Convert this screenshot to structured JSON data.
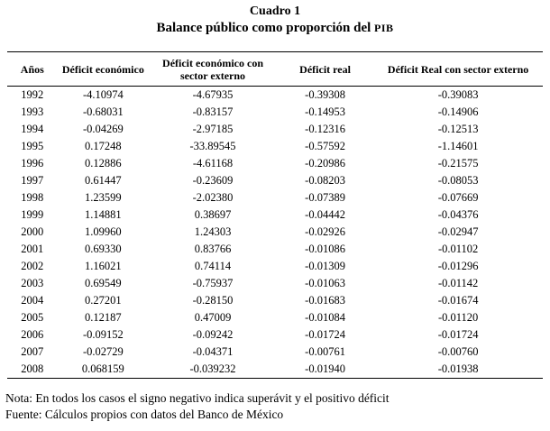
{
  "title": "Cuadro 1",
  "subtitle_prefix": "Balance público como proporción del ",
  "subtitle_acronym": "PIB",
  "table": {
    "headers": [
      "Años",
      "Déficit económico",
      "Déficit económico con sector externo",
      "Déficit real",
      "Déficit Real con sector externo"
    ],
    "rows": [
      [
        "1992",
        "-4.10974",
        "-4.67935",
        "-0.39308",
        "-0.39083"
      ],
      [
        "1993",
        "-0.68031",
        "-0.83157",
        "-0.14953",
        "-0.14906"
      ],
      [
        "1994",
        "-0.04269",
        "-2.97185",
        "-0.12316",
        "-0.12513"
      ],
      [
        "1995",
        "0.17248",
        "-33.89545",
        "-0.57592",
        "-1.14601"
      ],
      [
        "1996",
        "0.12886",
        "-4.61168",
        "-0.20986",
        "-0.21575"
      ],
      [
        "1997",
        "0.61447",
        "-0.23609",
        "-0.08203",
        "-0.08053"
      ],
      [
        "1998",
        "1.23599",
        "-2.02380",
        "-0.07389",
        "-0.07669"
      ],
      [
        "1999",
        "1.14881",
        "0.38697",
        "-0.04442",
        "-0.04376"
      ],
      [
        "2000",
        "1.09960",
        "1.24303",
        "-0.02926",
        "-0.02947"
      ],
      [
        "2001",
        "0.69330",
        "0.83766",
        "-0.01086",
        "-0.01102"
      ],
      [
        "2002",
        "1.16021",
        "0.74114",
        "-0.01309",
        "-0.01296"
      ],
      [
        "2003",
        "0.69549",
        "-0.75937",
        "-0.01063",
        "-0.01142"
      ],
      [
        "2004",
        "0.27201",
        "-0.28150",
        "-0.01683",
        "-0.01674"
      ],
      [
        "2005",
        "0.12187",
        "0.47009",
        "-0.01084",
        "-0.01120"
      ],
      [
        "2006",
        "-0.09152",
        "-0.09242",
        "-0.01724",
        "-0.01724"
      ],
      [
        "2007",
        "-0.02729",
        "-0.04371",
        "-0.00761",
        "-0.00760"
      ],
      [
        "2008",
        "0.068159",
        "-0.039232",
        "-0.01940",
        "-0.01938"
      ]
    ]
  },
  "notes": {
    "nota": "Nota: En todos los casos el signo negativo indica superávit y el positivo déficit",
    "fuente": "Fuente: Cálculos propios con datos del Banco de México"
  },
  "colors": {
    "text": "#000000",
    "background": "#ffffff",
    "rule": "#000000"
  }
}
